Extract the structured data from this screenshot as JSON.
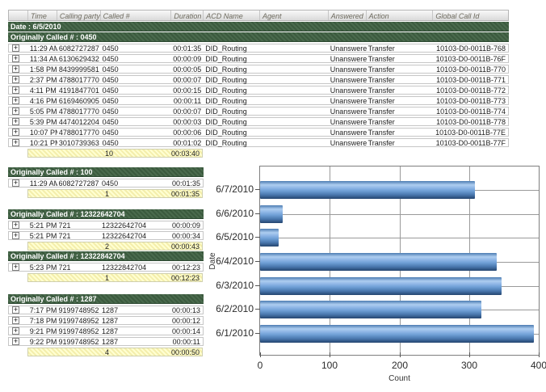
{
  "report": {
    "columns": [
      "Time",
      "Calling party #",
      "Called #",
      "Duration",
      "ACD Name",
      "Agent",
      "Answered",
      "Action",
      "Global Call Id"
    ],
    "date_band": "Date : 6/5/2010",
    "groups": [
      {
        "header": "Originally Called # : 0450",
        "rows": [
          [
            "11:29 AM",
            "6082727287",
            "0450",
            "00:01:35",
            "DID_Routing",
            "",
            "Unanswered",
            "Transfer",
            "10103-D0-0011B-768"
          ],
          [
            "11:34 AM",
            "6130629432",
            "0450",
            "00:00:09",
            "DID_Routing",
            "",
            "Unanswered",
            "Transfer",
            "10103-D0-0011B-76F"
          ],
          [
            "1:58 PM",
            "8439999581",
            "0450",
            "00:00:05",
            "DID_Routing",
            "",
            "Unanswered",
            "Transfer",
            "10103-D0-0011B-770"
          ],
          [
            "2:37 PM",
            "4788017770",
            "0450",
            "00:00:07",
            "DID_Routing",
            "",
            "Unanswered",
            "Transfer",
            "10103-D0-0011B-771"
          ],
          [
            "4:11 PM",
            "4191847701",
            "0450",
            "00:00:15",
            "DID_Routing",
            "",
            "Unanswered",
            "Transfer",
            "10103-D0-0011B-772"
          ],
          [
            "4:16 PM",
            "6169460905",
            "0450",
            "00:00:11",
            "DID_Routing",
            "",
            "Unanswered",
            "Transfer",
            "10103-D0-0011B-773"
          ],
          [
            "5:05 PM",
            "4788017770",
            "0450",
            "00:00:07",
            "DID_Routing",
            "",
            "Unanswered",
            "Transfer",
            "10103-D0-0011B-774"
          ],
          [
            "5:39 PM",
            "4474012204",
            "0450",
            "00:00:03",
            "DID_Routing",
            "",
            "Unanswered",
            "Transfer",
            "10103-D0-0011B-778"
          ],
          [
            "10:07 PM",
            "4788017770",
            "0450",
            "00:00:06",
            "DID_Routing",
            "",
            "Unanswered",
            "Transfer",
            "10103-D0-0011B-77E"
          ],
          [
            "10:21 PM",
            "3010739363",
            "0450",
            "00:01:02",
            "DID_Routing",
            "",
            "Unanswered",
            "Transfer",
            "10103-D0-0011B-77F"
          ]
        ],
        "summary": {
          "count": "10",
          "total_duration": "00:03:40"
        }
      },
      {
        "header": "Originally Called # : 100",
        "rows": [
          [
            "11:29 AM",
            "6082727287",
            "0450",
            "00:01:35"
          ]
        ],
        "summary": {
          "count": "1",
          "total_duration": "00:01:35"
        }
      },
      {
        "header": "Originally Called # : 12322642704",
        "rows": [
          [
            "5:21 PM",
            "721",
            "12322642704",
            "00:00:09"
          ],
          [
            "5:21 PM",
            "721",
            "12322642704",
            "00:00:34"
          ]
        ],
        "summary": {
          "count": "2",
          "total_duration": "00:00:43"
        }
      },
      {
        "header": "Originally Called # : 12322842704",
        "rows": [
          [
            "5:23 PM",
            "721",
            "12322842704",
            "00:12:23"
          ]
        ],
        "summary": {
          "count": "1",
          "total_duration": "00:12:23"
        }
      },
      {
        "header": "Originally Called # : 1287",
        "rows": [
          [
            "7:17 PM",
            "9199748952",
            "1287",
            "00:00:13"
          ],
          [
            "7:18 PM",
            "9199748952",
            "1287",
            "00:00:12"
          ],
          [
            "9:21 PM",
            "9199748952",
            "1287",
            "00:00:14"
          ],
          [
            "9:22 PM",
            "9199748952",
            "1287",
            "00:00:11"
          ]
        ],
        "summary": {
          "count": "4",
          "total_duration": "00:00:50"
        }
      }
    ]
  },
  "chart_data": {
    "type": "bar",
    "orientation": "horizontal",
    "title": "",
    "categories": [
      "6/7/2010",
      "6/6/2010",
      "6/5/2010",
      "6/4/2010",
      "6/3/2010",
      "6/2/2010",
      "6/1/2010"
    ],
    "values": [
      308,
      33,
      27,
      340,
      347,
      318,
      393
    ],
    "xlabel": "Count",
    "ylabel": "Date",
    "x_ticks": [
      0,
      100,
      200,
      300,
      400
    ],
    "xlim": [
      0,
      400
    ],
    "grid": true,
    "legend": "none"
  },
  "colors": {
    "group_band_green": "#3b5a3e",
    "group_band_hatch": "#4a6a4d",
    "summary_yellow": "#ffffd1",
    "summary_hatch": "#f4eeac",
    "bar_highlight": "#aecdf0",
    "bar_main": "#6f9fd6",
    "bar_dark": "#24456f",
    "gridline": "#9a9a9a"
  }
}
